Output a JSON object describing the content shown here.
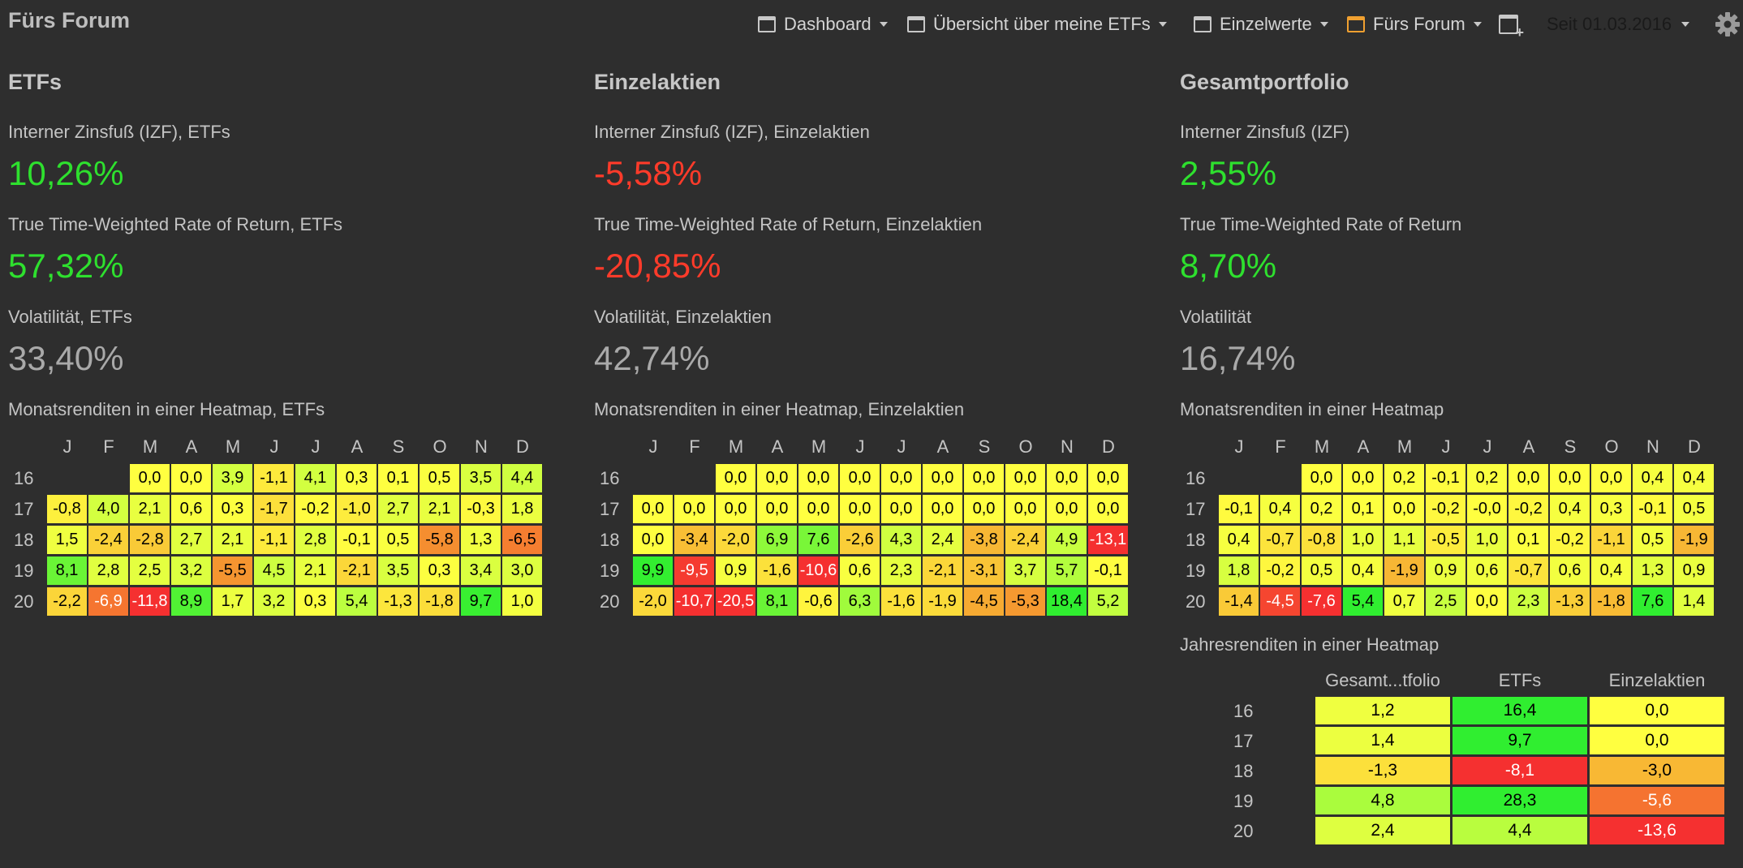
{
  "app": {
    "title": "Fürs Forum"
  },
  "nav": {
    "tabs": [
      {
        "label": "Dashboard",
        "active": false
      },
      {
        "label": "Übersicht über meine ETFs",
        "active": false
      },
      {
        "label": "Einzelwerte",
        "active": false
      },
      {
        "label": "Fürs Forum",
        "active": true
      }
    ],
    "period": "Seit 01.03.2016"
  },
  "colors": {
    "background": "#2e2e2e",
    "positive": "#2ee02e",
    "negative": "#ff3b2a",
    "neutral": "#a9a9a9",
    "active_tab": "#f0a030"
  },
  "heatmap_months": [
    "J",
    "F",
    "M",
    "A",
    "M",
    "J",
    "J",
    "A",
    "S",
    "O",
    "N",
    "D"
  ],
  "sections": [
    {
      "title": "ETFs",
      "izf_label": "Interner Zinsfuß (IZF), ETFs",
      "izf_value": "10,26%",
      "twr_label": "True Time-Weighted Rate of Return, ETFs",
      "twr_value": "57,32%",
      "vol_label": "Volatilität, ETFs",
      "vol_value": "33,40%",
      "heatmap_title": "Monatsrenditen in einer Heatmap, ETFs",
      "heatmap": {
        "years": [
          "16",
          "17",
          "18",
          "19",
          "20"
        ],
        "rows": [
          [
            null,
            null,
            "0,0",
            "0,0",
            "3,9",
            "-1,1",
            "4,1",
            "0,3",
            "0,1",
            "0,5",
            "3,5",
            "4,4"
          ],
          [
            "-0,8",
            "4,0",
            "2,1",
            "0,6",
            "0,3",
            "-1,7",
            "-0,2",
            "-1,0",
            "2,7",
            "2,1",
            "-0,3",
            "1,8"
          ],
          [
            "1,5",
            "-2,4",
            "-2,8",
            "2,7",
            "2,1",
            "-1,1",
            "2,8",
            "-0,1",
            "0,5",
            "-5,8",
            "1,3",
            "-6,5"
          ],
          [
            "8,1",
            "2,8",
            "2,5",
            "3,2",
            "-5,5",
            "4,5",
            "2,1",
            "-2,1",
            "3,5",
            "0,3",
            "3,4",
            "3,0"
          ],
          [
            "-2,2",
            "-6,9",
            "-11,8",
            "8,9",
            "1,7",
            "3,2",
            "0,3",
            "5,4",
            "-1,3",
            "-1,8",
            "9,7",
            "1,0"
          ]
        ]
      }
    },
    {
      "title": "Einzelaktien",
      "izf_label": "Interner Zinsfuß (IZF), Einzelaktien",
      "izf_value": "-5,58%",
      "twr_label": "True Time-Weighted Rate of Return, Einzelaktien",
      "twr_value": "-20,85%",
      "vol_label": "Volatilität, Einzelaktien",
      "vol_value": "42,74%",
      "heatmap_title": "Monatsrenditen in einer Heatmap, Einzelaktien",
      "heatmap": {
        "years": [
          "16",
          "17",
          "18",
          "19",
          "20"
        ],
        "rows": [
          [
            null,
            null,
            "0,0",
            "0,0",
            "0,0",
            "0,0",
            "0,0",
            "0,0",
            "0,0",
            "0,0",
            "0,0",
            "0,0"
          ],
          [
            "0,0",
            "0,0",
            "0,0",
            "0,0",
            "0,0",
            "0,0",
            "0,0",
            "0,0",
            "0,0",
            "0,0",
            "0,0",
            "0,0"
          ],
          [
            "0,0",
            "-3,4",
            "-2,0",
            "6,9",
            "7,6",
            "-2,6",
            "4,3",
            "2,4",
            "-3,8",
            "-2,4",
            "4,9",
            "-13,1"
          ],
          [
            "9,9",
            "-9,5",
            "0,9",
            "-1,6",
            "-10,6",
            "0,6",
            "2,3",
            "-2,1",
            "-3,1",
            "3,7",
            "5,7",
            "-0,1"
          ],
          [
            "-2,0",
            "-10,7",
            "-20,5",
            "8,1",
            "-0,6",
            "6,3",
            "-1,6",
            "-1,9",
            "-4,5",
            "-5,3",
            "18,4",
            "5,2"
          ]
        ]
      }
    },
    {
      "title": "Gesamtportfolio",
      "izf_label": "Interner Zinsfuß (IZF)",
      "izf_value": "2,55%",
      "twr_label": "True Time-Weighted Rate of Return",
      "twr_value": "8,70%",
      "vol_label": "Volatilität",
      "vol_value": "16,74%",
      "heatmap_title": "Monatsrenditen in einer Heatmap",
      "heatmap": {
        "years": [
          "16",
          "17",
          "18",
          "19",
          "20"
        ],
        "rows": [
          [
            null,
            null,
            "0,0",
            "0,0",
            "0,2",
            "-0,1",
            "0,2",
            "0,0",
            "0,0",
            "0,0",
            "0,4",
            "0,4"
          ],
          [
            "-0,1",
            "0,4",
            "0,2",
            "0,1",
            "0,0",
            "-0,2",
            "-0,0",
            "-0,2",
            "0,4",
            "0,3",
            "-0,1",
            "0,5"
          ],
          [
            "0,4",
            "-0,7",
            "-0,8",
            "1,0",
            "1,1",
            "-0,5",
            "1,0",
            "0,1",
            "-0,2",
            "-1,1",
            "0,5",
            "-1,9"
          ],
          [
            "1,8",
            "-0,2",
            "0,5",
            "0,4",
            "-1,9",
            "0,9",
            "0,6",
            "-0,7",
            "0,6",
            "0,4",
            "1,3",
            "0,9"
          ],
          [
            "-1,4",
            "-4,5",
            "-7,6",
            "5,4",
            "0,7",
            "2,5",
            "0,0",
            "2,3",
            "-1,3",
            "-1,8",
            "7,6",
            "1,4"
          ]
        ]
      },
      "annual": {
        "title": "Jahresrenditen in einer Heatmap",
        "headers": [
          "Gesamt...tfolio",
          "ETFs",
          "Einzelaktien"
        ],
        "years": [
          "16",
          "17",
          "18",
          "19",
          "20"
        ],
        "rows": [
          [
            "1,2",
            "16,4",
            "0,0"
          ],
          [
            "1,4",
            "9,7",
            "0,0"
          ],
          [
            "-1,3",
            "-8,1",
            "-3,0"
          ],
          [
            "4,8",
            "28,3",
            "-5,6"
          ],
          [
            "2,4",
            "4,4",
            "-13,6"
          ]
        ]
      }
    }
  ]
}
